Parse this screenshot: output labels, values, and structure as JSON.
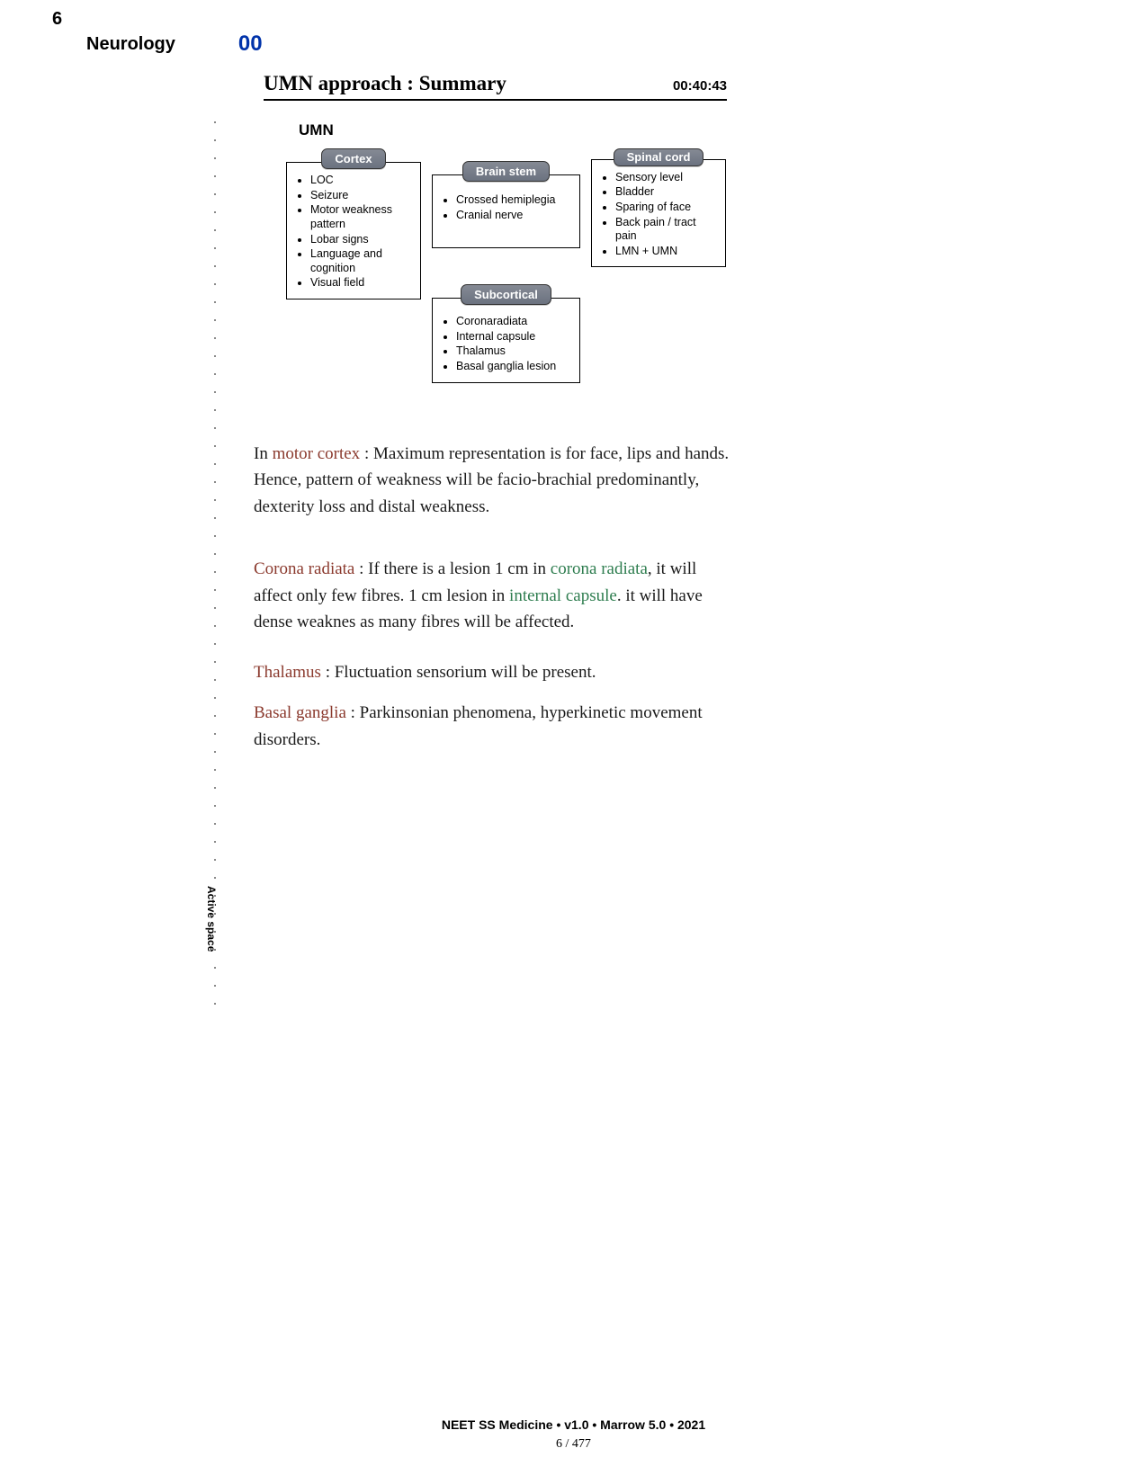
{
  "page_number_top": "6",
  "header": {
    "subject": "Neurology",
    "code": "00"
  },
  "title": {
    "text": "UMN approach : Summary",
    "timestamp": "00:40:43"
  },
  "diagram": {
    "heading": "UMN",
    "nodes": {
      "cortex": {
        "label": "Cortex",
        "items": [
          "LOC",
          "Seizure",
          "Motor weakness pattern",
          "Lobar signs",
          "Language and cognition",
          "Visual field"
        ]
      },
      "brainstem": {
        "label": "Brain stem",
        "items": [
          "Crossed hemiplegia",
          "Cranial nerve"
        ]
      },
      "spinalcord": {
        "label": "Spinal cord",
        "items": [
          "Sensory level",
          "Bladder",
          "Sparing of face",
          "Back pain / tract pain",
          "LMN + UMN"
        ]
      },
      "subcortical": {
        "label": "Subcortical",
        "items": [
          "Coronaradiata",
          "Internal capsule",
          "Thalamus",
          "Basal ganglia lesion"
        ]
      }
    }
  },
  "paragraphs": {
    "p1_prefix": "In ",
    "p1_hl1": "motor cortex",
    "p1_rest": " : Maximum representation is for face, lips and hands. Hence, pattern of weakness will be facio-brachial predominantly, dexterity loss and distal weakness.",
    "p2_hl1": "Corona radiata",
    "p2_mid1": " : If there is a lesion 1 cm in ",
    "p2_hl2": "corona radiata",
    "p2_mid2": ", it will affect only few fibres. 1 cm lesion in ",
    "p2_hl3": "internal capsule",
    "p2_rest": ". it will have dense weaknes as many fibres will be affected.",
    "p3_hl1": "Thalamus",
    "p3_rest": " : Fluctuation sensorium will be present.",
    "p4_hl1": "Basal ganglia",
    "p4_rest": " : Parkinsonian phenomena, hyperkinetic movement disorders."
  },
  "margin_label": "Active space",
  "footer": {
    "line1": "NEET SS Medicine • v1.0 • Marrow 5.0 • 2021",
    "line2": "6 / 477"
  }
}
